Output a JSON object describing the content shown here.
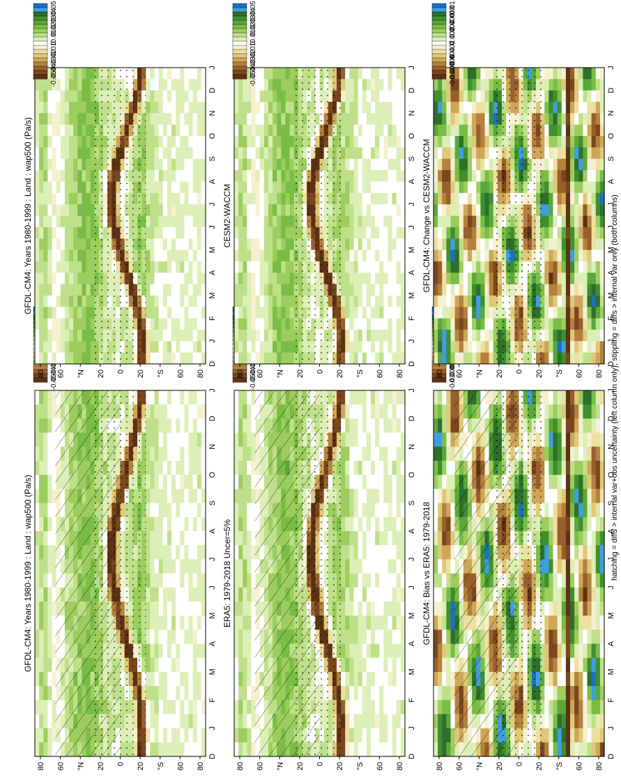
{
  "footnote": "hatching = diffs > internal var+obs uncertainty (left column only); stippling = diffs > internal var only (both columns)",
  "month_labels": [
    "D",
    "J",
    "F",
    "M",
    "A",
    "M",
    "J",
    "J",
    "A",
    "S",
    "O",
    "N",
    "D",
    "J"
  ],
  "lat_labels": [
    "80",
    "60",
    "°N",
    "20",
    "0",
    "20",
    "°S",
    "60",
    "80"
  ],
  "palette": {
    "main": [
      "#1a6fc4",
      "#3e9ee0",
      "#2e6f2a",
      "#3f8f2f",
      "#5aa83a",
      "#79bd46",
      "#9ccd5e",
      "#bfe08a",
      "#ddefb8",
      "#ffffff",
      "#f6f0d0",
      "#ede0a0",
      "#e0c878",
      "#cfa658",
      "#b5813e",
      "#96602c",
      "#7a461e",
      "#5c3214"
    ]
  },
  "panels": [
    {
      "id": "model-left",
      "title": "GFDL-CM4: Years 1980-1999 : Land : wap500 (Pa/s)",
      "colorbar_labels": [
        "0.05",
        "0.04",
        "0.03",
        "0.02",
        "0.01",
        "0",
        "-0.01",
        "-0.02",
        "-0.03",
        "-0.04",
        "-0.05"
      ],
      "hatched": true,
      "stippled": true
    },
    {
      "id": "model-right",
      "title": "GFDL-CM4: Years 1980-1999 : Land : wap500 (Pa/s)",
      "colorbar_labels": [
        "0.05",
        "0.04",
        "0.03",
        "0.02",
        "0.01",
        "0",
        "-0.01",
        "-0.02",
        "-0.03",
        "-0.04",
        "-0.05"
      ],
      "hatched": false,
      "stippled": true
    },
    {
      "id": "obs-left",
      "title": "ERA5: 1979-2018 Uncer=5%",
      "colorbar_labels": [
        "0.05",
        "0.04",
        "0.03",
        "0.02",
        "0.01",
        "0",
        "-0.01",
        "-0.02",
        "-0.03",
        "-0.04",
        "-0.05"
      ],
      "hatched": true,
      "stippled": true
    },
    {
      "id": "ref-right",
      "title": "CESM2-WACCM",
      "colorbar_labels": [
        "0.05",
        "0.04",
        "0.03",
        "0.02",
        "0.01",
        "0",
        "-0.01",
        "-0.02",
        "-0.03",
        "-0.04",
        "-0.05"
      ],
      "hatched": false,
      "stippled": true
    },
    {
      "id": "bias-left",
      "title": "GFDL-CM4: Bias vs ERA5: 1979-2018",
      "colorbar_labels": [
        "0.01",
        "0.008",
        "0.006",
        "0.004",
        "0.002",
        "0",
        "-0.002",
        "-0.004",
        "-0.006",
        "-0.008",
        "-0.01"
      ],
      "hatched": true,
      "stippled": true
    },
    {
      "id": "change-right",
      "title": "GFDL-CM4: Change vs CESM2-WACCM",
      "colorbar_labels": [
        "0.01",
        "0.008",
        "0.006",
        "0.004",
        "0.002",
        "0",
        "-0.002",
        "-0.004",
        "-0.006",
        "-0.008",
        "-0.01"
      ],
      "hatched": false,
      "stippled": true
    }
  ],
  "chart_data": [
    {
      "type": "heatmap",
      "title": "GFDL-CM4: Years 1980-1999 : Land : wap500 (Pa/s)",
      "x_tick_labels": [
        "D",
        "J",
        "F",
        "M",
        "A",
        "M",
        "J",
        "J",
        "A",
        "S",
        "O",
        "N",
        "D",
        "J"
      ],
      "y_tick_labels": [
        "80",
        "60",
        "°N",
        "20",
        "0",
        "20",
        "°S",
        "60",
        "80"
      ],
      "colorbar_range": [
        -0.05,
        0.05
      ],
      "features": {
        "subsidence_band_max": 0.05,
        "ascent_max": -0.05
      }
    },
    {
      "type": "heatmap",
      "title": "GFDL-CM4: Years 1980-1999 : Land : wap500 (Pa/s)",
      "x_tick_labels": [
        "D",
        "J",
        "F",
        "M",
        "A",
        "M",
        "J",
        "J",
        "A",
        "S",
        "O",
        "N",
        "D",
        "J"
      ],
      "y_tick_labels": [
        "80",
        "60",
        "°N",
        "20",
        "0",
        "20",
        "°S",
        "60",
        "80"
      ],
      "colorbar_range": [
        -0.05,
        0.05
      ]
    },
    {
      "type": "heatmap",
      "title": "ERA5: 1979-2018 Uncer=5%",
      "x_tick_labels": [
        "D",
        "J",
        "F",
        "M",
        "A",
        "M",
        "J",
        "J",
        "A",
        "S",
        "O",
        "N",
        "D",
        "J"
      ],
      "y_tick_labels": [
        "80",
        "60",
        "°N",
        "20",
        "0",
        "20",
        "°S",
        "60",
        "80"
      ],
      "colorbar_range": [
        -0.05,
        0.05
      ]
    },
    {
      "type": "heatmap",
      "title": "CESM2-WACCM",
      "x_tick_labels": [
        "D",
        "J",
        "F",
        "M",
        "A",
        "M",
        "J",
        "J",
        "A",
        "S",
        "O",
        "N",
        "D",
        "J"
      ],
      "y_tick_labels": [
        "80",
        "60",
        "°N",
        "20",
        "0",
        "20",
        "°S",
        "60",
        "80"
      ],
      "colorbar_range": [
        -0.05,
        0.05
      ]
    },
    {
      "type": "heatmap",
      "title": "GFDL-CM4: Bias vs ERA5: 1979-2018",
      "x_tick_labels": [
        "D",
        "J",
        "F",
        "M",
        "A",
        "M",
        "J",
        "J",
        "A",
        "S",
        "O",
        "N",
        "D",
        "J"
      ],
      "y_tick_labels": [
        "80",
        "60",
        "°N",
        "20",
        "0",
        "20",
        "°S",
        "60",
        "80"
      ],
      "colorbar_range": [
        -0.01,
        0.01
      ]
    },
    {
      "type": "heatmap",
      "title": "GFDL-CM4: Change vs CESM2-WACCM",
      "x_tick_labels": [
        "D",
        "J",
        "F",
        "M",
        "A",
        "M",
        "J",
        "J",
        "A",
        "S",
        "O",
        "N",
        "D",
        "J"
      ],
      "y_tick_labels": [
        "80",
        "60",
        "°N",
        "20",
        "0",
        "20",
        "°S",
        "60",
        "80"
      ],
      "colorbar_range": [
        -0.01,
        0.01
      ]
    }
  ]
}
